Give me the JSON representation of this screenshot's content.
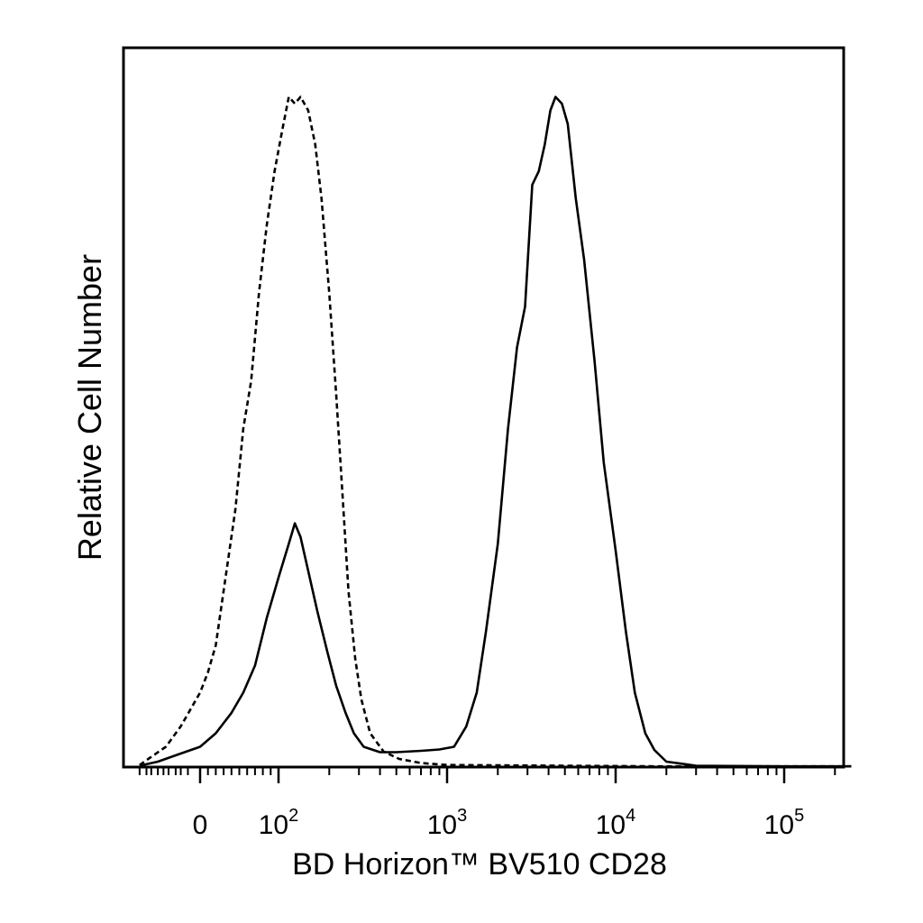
{
  "chart_data": {
    "type": "line",
    "chart_kind": "flow cytometry histogram",
    "x_scale": "biexponential (log-like)",
    "xlabel": "BD Horizon™ BV510 CD28",
    "ylabel": "Relative Cell Number",
    "x_ticks": [
      {
        "value": 0,
        "label": "0"
      },
      {
        "value": 100,
        "label": "10",
        "exp": "2"
      },
      {
        "value": 1000,
        "label": "10",
        "exp": "3"
      },
      {
        "value": 10000,
        "label": "10",
        "exp": "4"
      },
      {
        "value": 100000,
        "label": "10",
        "exp": "5"
      }
    ],
    "xlim": [
      -300,
      250000
    ],
    "ylim": [
      0,
      100
    ],
    "grid": false,
    "series": [
      {
        "style": "dashed",
        "color": "#000000",
        "points": [
          [
            -300,
            0.3
          ],
          [
            -150,
            1.5
          ],
          [
            -60,
            3
          ],
          [
            -20,
            6
          ],
          [
            0,
            11
          ],
          [
            10,
            14
          ],
          [
            20,
            18
          ],
          [
            35,
            30
          ],
          [
            45,
            38
          ],
          [
            55,
            50
          ],
          [
            65,
            57
          ],
          [
            75,
            70
          ],
          [
            85,
            80
          ],
          [
            95,
            88
          ],
          [
            105,
            94
          ],
          [
            115,
            99
          ],
          [
            125,
            98
          ],
          [
            135,
            99
          ],
          [
            150,
            97
          ],
          [
            165,
            92
          ],
          [
            180,
            84
          ],
          [
            200,
            70
          ],
          [
            220,
            55
          ],
          [
            240,
            40
          ],
          [
            260,
            26
          ],
          [
            285,
            16
          ],
          [
            310,
            10
          ],
          [
            350,
            5
          ],
          [
            420,
            2.3
          ],
          [
            520,
            1.2
          ],
          [
            700,
            0.6
          ],
          [
            1000,
            0.3
          ],
          [
            5000,
            0.2
          ],
          [
            20000,
            0.1
          ],
          [
            250000,
            0.1
          ]
        ]
      },
      {
        "style": "solid",
        "color": "#000000",
        "points": [
          [
            -300,
            0.2
          ],
          [
            -100,
            0.8
          ],
          [
            -20,
            2
          ],
          [
            0,
            3
          ],
          [
            20,
            5
          ],
          [
            40,
            8
          ],
          [
            55,
            11
          ],
          [
            70,
            15
          ],
          [
            85,
            22
          ],
          [
            100,
            28
          ],
          [
            115,
            33
          ],
          [
            125,
            36
          ],
          [
            135,
            34
          ],
          [
            150,
            29
          ],
          [
            170,
            23
          ],
          [
            195,
            17
          ],
          [
            220,
            12
          ],
          [
            250,
            8
          ],
          [
            280,
            5
          ],
          [
            320,
            3
          ],
          [
            400,
            2.2
          ],
          [
            500,
            2.2
          ],
          [
            700,
            2.4
          ],
          [
            900,
            2.6
          ],
          [
            1100,
            3
          ],
          [
            1300,
            6
          ],
          [
            1500,
            11
          ],
          [
            1700,
            20
          ],
          [
            2000,
            33
          ],
          [
            2300,
            50
          ],
          [
            2600,
            62
          ],
          [
            2900,
            68
          ],
          [
            3200,
            86
          ],
          [
            3500,
            88
          ],
          [
            3800,
            92
          ],
          [
            4100,
            97
          ],
          [
            4400,
            99
          ],
          [
            4800,
            98
          ],
          [
            5200,
            95
          ],
          [
            5800,
            84
          ],
          [
            6500,
            75
          ],
          [
            7500,
            60
          ],
          [
            8500,
            45
          ],
          [
            10000,
            32
          ],
          [
            11500,
            20
          ],
          [
            13000,
            11
          ],
          [
            15000,
            5
          ],
          [
            17000,
            2.5
          ],
          [
            20000,
            0.8
          ],
          [
            30000,
            0.2
          ],
          [
            100000,
            0.1
          ],
          [
            250000,
            0.1
          ]
        ]
      }
    ]
  }
}
